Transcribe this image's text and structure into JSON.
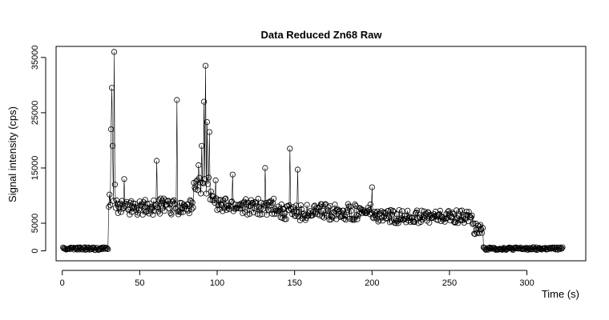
{
  "chart_data": {
    "type": "line",
    "title": "Data Reduced Zn68 Raw",
    "xlabel": "Time (s)",
    "ylabel": "Signal intensity (cps)",
    "xlim": [
      -4,
      338
    ],
    "ylim": [
      -1800,
      37000
    ],
    "xticks": [
      0,
      50,
      100,
      150,
      200,
      250,
      300
    ],
    "yticks": [
      0,
      5000,
      15000,
      25000,
      35000
    ],
    "grid": false,
    "legend": "none",
    "markers": "open-circle",
    "sampling_interval_s": 0.5,
    "time_range": [
      0.5,
      323
    ],
    "segments": [
      {
        "x": [
          0,
          30
        ],
        "baseline": 400,
        "noise": 250
      },
      {
        "x": [
          30,
          35
        ],
        "baseline": 9000,
        "noise": 2000
      },
      {
        "x": [
          35,
          85
        ],
        "baseline": 8000,
        "noise": 1500
      },
      {
        "x": [
          85,
          100
        ],
        "baseline": 11000,
        "noise": 2500
      },
      {
        "x": [
          100,
          140
        ],
        "baseline": 8000,
        "noise": 1500
      },
      {
        "x": [
          140,
          200
        ],
        "baseline": 7000,
        "noise": 1500
      },
      {
        "x": [
          200,
          265
        ],
        "baseline": 6200,
        "noise": 1200
      },
      {
        "x": [
          265,
          272
        ],
        "baseline": 4000,
        "noise": 1000
      },
      {
        "x": [
          272,
          323
        ],
        "baseline": 400,
        "noise": 250
      }
    ],
    "peaks": [
      {
        "x": 31.5,
        "y": 22000
      },
      {
        "x": 32.0,
        "y": 29500
      },
      {
        "x": 32.5,
        "y": 19000
      },
      {
        "x": 33.5,
        "y": 36000
      },
      {
        "x": 34.0,
        "y": 12000
      },
      {
        "x": 40.0,
        "y": 13000
      },
      {
        "x": 61.0,
        "y": 16300
      },
      {
        "x": 74.0,
        "y": 27300
      },
      {
        "x": 88.0,
        "y": 15500
      },
      {
        "x": 90.0,
        "y": 19000
      },
      {
        "x": 91.5,
        "y": 27000
      },
      {
        "x": 92.5,
        "y": 33500
      },
      {
        "x": 93.5,
        "y": 23300
      },
      {
        "x": 95.0,
        "y": 21500
      },
      {
        "x": 110.0,
        "y": 13800
      },
      {
        "x": 131.0,
        "y": 15000
      },
      {
        "x": 147.0,
        "y": 18500
      },
      {
        "x": 152.0,
        "y": 14700
      },
      {
        "x": 200.0,
        "y": 11500
      }
    ]
  }
}
